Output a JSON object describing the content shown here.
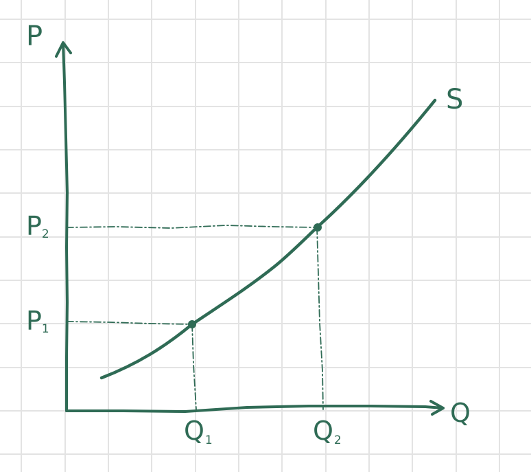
{
  "diagram": {
    "axes": {
      "y_label": "P",
      "x_label": "Q"
    },
    "curve": {
      "label": "S"
    },
    "points": [
      {
        "p_label": "P",
        "p_sub": "1",
        "q_label": "Q",
        "q_sub": "1"
      },
      {
        "p_label": "P",
        "p_sub": "2",
        "q_label": "Q",
        "q_sub": "2"
      }
    ]
  }
}
